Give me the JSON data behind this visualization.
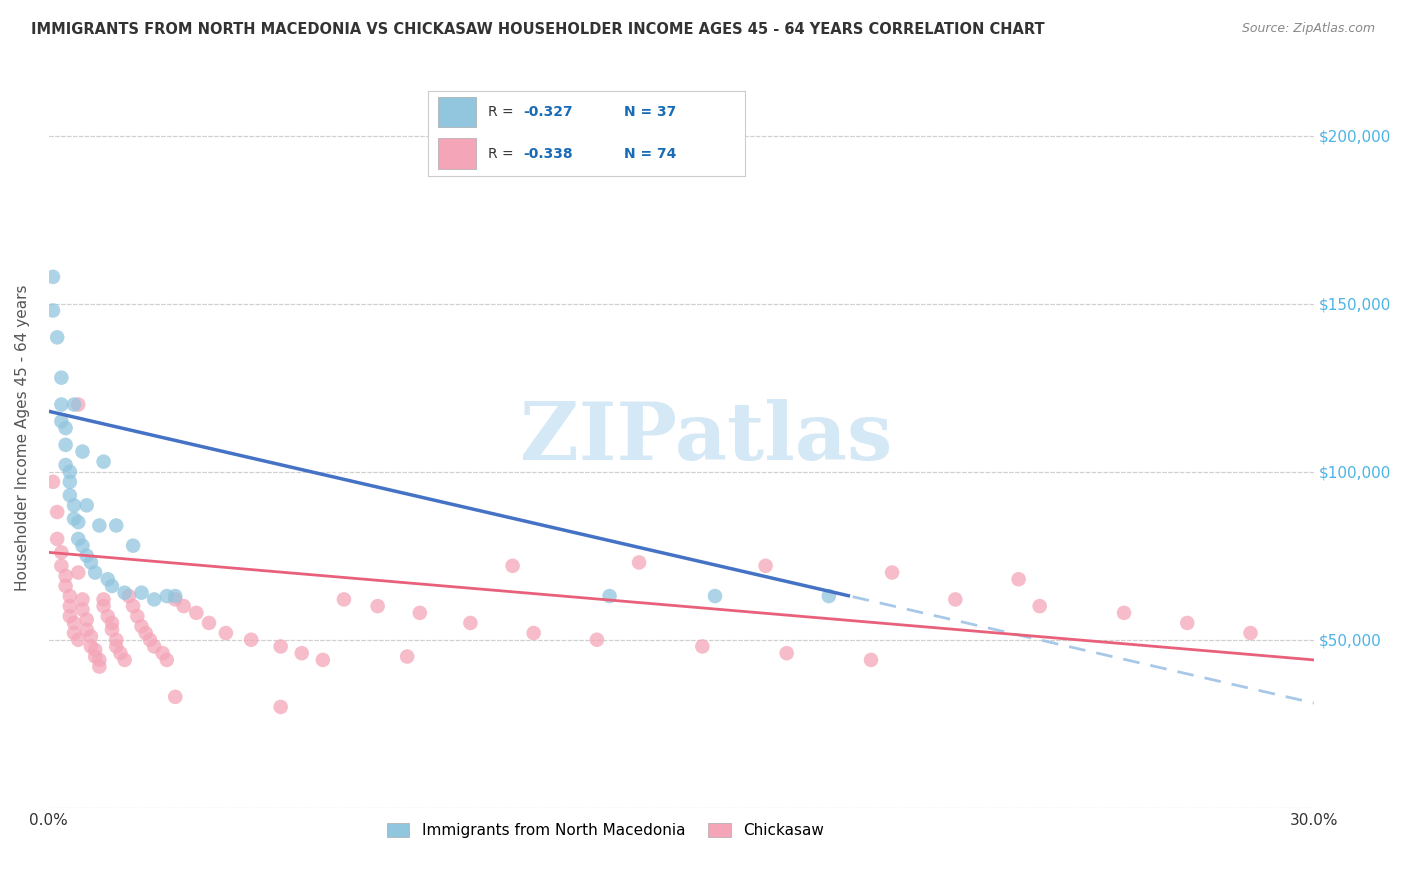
{
  "title": "IMMIGRANTS FROM NORTH MACEDONIA VS CHICKASAW HOUSEHOLDER INCOME AGES 45 - 64 YEARS CORRELATION CHART",
  "source": "Source: ZipAtlas.com",
  "ylabel": "Householder Income Ages 45 - 64 years",
  "xlim": [
    0.0,
    0.3
  ],
  "ylim": [
    0,
    220000
  ],
  "yticks": [
    0,
    50000,
    100000,
    150000,
    200000
  ],
  "ytick_labels": [
    "",
    "$50,000",
    "$100,000",
    "$150,000",
    "$200,000"
  ],
  "xticks": [
    0.0,
    0.05,
    0.1,
    0.15,
    0.2,
    0.25,
    0.3
  ],
  "xtick_labels": [
    "0.0%",
    "",
    "",
    "",
    "",
    "",
    "30.0%"
  ],
  "color_blue": "#92c5de",
  "color_pink": "#f4a6b8",
  "color_blue_line": "#4472c4",
  "color_pink_line": "#e8607a",
  "color_blue_dash": "#a8c8e8",
  "watermark_text": "ZIPatlas",
  "watermark_color": "#d5e8f5",
  "background_color": "#ffffff",
  "grid_color": "#d0d0d0",
  "title_color": "#333333",
  "source_color": "#888888",
  "ylabel_color": "#555555",
  "right_axis_color": "#4db3e6",
  "legend_text_color": "#1a6bb5",
  "legend_label_color": "#333333",
  "blue_scatter_x": [
    0.001,
    0.001,
    0.002,
    0.003,
    0.003,
    0.003,
    0.004,
    0.004,
    0.004,
    0.005,
    0.005,
    0.005,
    0.006,
    0.006,
    0.006,
    0.007,
    0.007,
    0.008,
    0.008,
    0.009,
    0.009,
    0.01,
    0.011,
    0.012,
    0.013,
    0.014,
    0.015,
    0.016,
    0.018,
    0.02,
    0.022,
    0.025,
    0.028,
    0.03,
    0.133,
    0.158,
    0.185
  ],
  "blue_scatter_y": [
    158000,
    148000,
    140000,
    128000,
    120000,
    115000,
    113000,
    108000,
    102000,
    100000,
    97000,
    93000,
    90000,
    86000,
    120000,
    85000,
    80000,
    78000,
    106000,
    75000,
    90000,
    73000,
    70000,
    84000,
    103000,
    68000,
    66000,
    84000,
    64000,
    78000,
    64000,
    62000,
    63000,
    63000,
    63000,
    63000,
    63000
  ],
  "pink_scatter_x": [
    0.001,
    0.002,
    0.002,
    0.003,
    0.003,
    0.004,
    0.004,
    0.005,
    0.005,
    0.005,
    0.006,
    0.006,
    0.007,
    0.007,
    0.007,
    0.008,
    0.008,
    0.009,
    0.009,
    0.01,
    0.01,
    0.011,
    0.011,
    0.012,
    0.012,
    0.013,
    0.013,
    0.014,
    0.015,
    0.015,
    0.016,
    0.016,
    0.017,
    0.018,
    0.019,
    0.02,
    0.021,
    0.022,
    0.023,
    0.024,
    0.025,
    0.027,
    0.028,
    0.03,
    0.032,
    0.035,
    0.038,
    0.042,
    0.048,
    0.055,
    0.06,
    0.065,
    0.07,
    0.078,
    0.088,
    0.1,
    0.115,
    0.13,
    0.155,
    0.175,
    0.195,
    0.215,
    0.235,
    0.255,
    0.27,
    0.285,
    0.03,
    0.055,
    0.085,
    0.11,
    0.14,
    0.17,
    0.2,
    0.23
  ],
  "pink_scatter_y": [
    97000,
    88000,
    80000,
    76000,
    72000,
    69000,
    66000,
    63000,
    60000,
    57000,
    55000,
    52000,
    50000,
    70000,
    120000,
    62000,
    59000,
    56000,
    53000,
    51000,
    48000,
    47000,
    45000,
    44000,
    42000,
    62000,
    60000,
    57000,
    55000,
    53000,
    50000,
    48000,
    46000,
    44000,
    63000,
    60000,
    57000,
    54000,
    52000,
    50000,
    48000,
    46000,
    44000,
    62000,
    60000,
    58000,
    55000,
    52000,
    50000,
    48000,
    46000,
    44000,
    62000,
    60000,
    58000,
    55000,
    52000,
    50000,
    48000,
    46000,
    44000,
    62000,
    60000,
    58000,
    55000,
    52000,
    33000,
    30000,
    45000,
    72000,
    73000,
    72000,
    70000,
    68000
  ],
  "blue_line_x0": 0.0,
  "blue_line_y0": 118000,
  "blue_line_x1": 0.19,
  "blue_line_y1": 63000,
  "pink_line_x0": 0.0,
  "pink_line_y0": 76000,
  "pink_line_x1": 0.3,
  "pink_line_y1": 44000
}
